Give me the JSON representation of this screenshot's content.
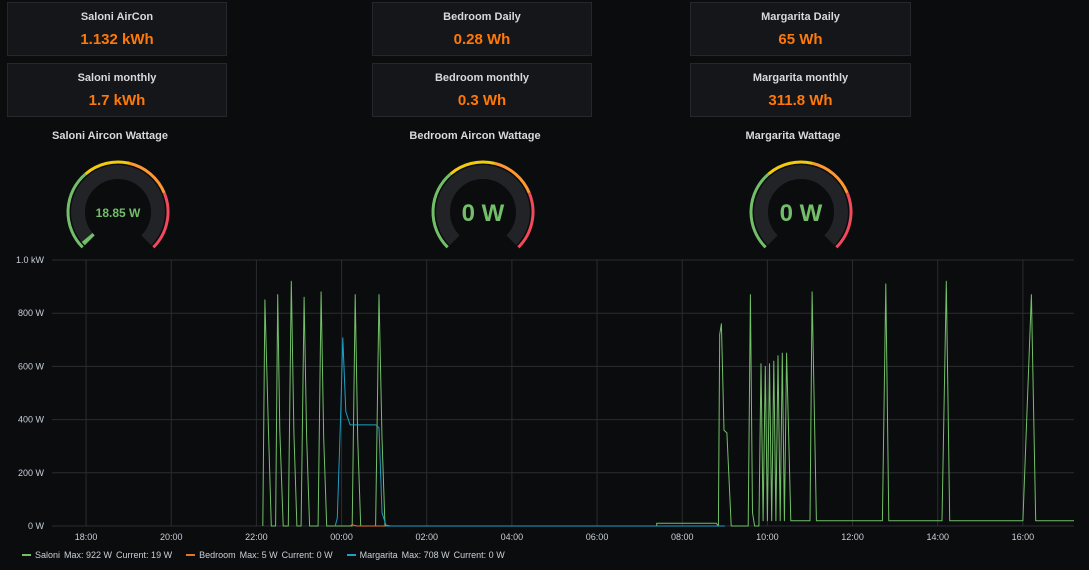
{
  "stats": [
    {
      "title": "Saloni AirCon",
      "value": "1.132 kWh"
    },
    {
      "title": "Bedroom Daily",
      "value": "0.28 Wh"
    },
    {
      "title": "Margarita Daily",
      "value": "65 Wh"
    },
    {
      "title": "Saloni monthly",
      "value": "1.7 kWh"
    },
    {
      "title": "Bedroom monthly",
      "value": "0.3 Wh"
    },
    {
      "title": "Margarita monthly",
      "value": "311.8 Wh"
    }
  ],
  "gauges": [
    {
      "title": "Saloni Aircon Wattage",
      "value": "18.85 W",
      "level": 0.019
    },
    {
      "title": "Bedroom Aircon Wattage",
      "value": "0 W",
      "level": 0
    },
    {
      "title": "Margarita Wattage",
      "value": "0 W",
      "level": 0
    }
  ],
  "colors": {
    "stat_value": "#ff780a",
    "gauge_value": "#73bf69",
    "saloni": "#73bf69",
    "bedroom": "#e0752d",
    "margarita": "#1f9ec9"
  },
  "chart_data": {
    "type": "line",
    "x_ticks": [
      "18:00",
      "20:00",
      "22:00",
      "00:00",
      "02:00",
      "04:00",
      "06:00",
      "08:00",
      "10:00",
      "12:00",
      "14:00",
      "16:00"
    ],
    "y_ticks": [
      "0 W",
      "200 W",
      "400 W",
      "600 W",
      "800 W",
      "1.0 kW"
    ],
    "ylim": [
      0,
      1000
    ],
    "xlim_hours": [
      17.2,
      41.2
    ],
    "grid": true,
    "series": [
      {
        "name": "Saloni",
        "color": "#73bf69",
        "points": [
          [
            22.15,
            0
          ],
          [
            22.2,
            850
          ],
          [
            22.28,
            380
          ],
          [
            22.35,
            0
          ],
          [
            22.45,
            0
          ],
          [
            22.5,
            870
          ],
          [
            22.55,
            360
          ],
          [
            22.63,
            0
          ],
          [
            22.75,
            0
          ],
          [
            22.82,
            920
          ],
          [
            22.88,
            350
          ],
          [
            22.95,
            0
          ],
          [
            23.05,
            0
          ],
          [
            23.12,
            860
          ],
          [
            23.18,
            340
          ],
          [
            23.25,
            0
          ],
          [
            23.45,
            0
          ],
          [
            23.52,
            880
          ],
          [
            23.58,
            330
          ],
          [
            23.65,
            0
          ],
          [
            24.25,
            0
          ],
          [
            24.32,
            870
          ],
          [
            24.38,
            330
          ],
          [
            24.45,
            0
          ],
          [
            24.8,
            0
          ],
          [
            24.88,
            870
          ],
          [
            24.95,
            330
          ],
          [
            25.02,
            0
          ],
          [
            25.2,
            0
          ],
          [
            31.3,
            0
          ],
          [
            31.4,
            0
          ],
          [
            31.4,
            10
          ],
          [
            32.8,
            10
          ],
          [
            32.85,
            0
          ],
          [
            32.88,
            720
          ],
          [
            32.92,
            760
          ],
          [
            32.98,
            360
          ],
          [
            33.05,
            350
          ],
          [
            33.15,
            0
          ],
          [
            33.55,
            0
          ],
          [
            33.6,
            870
          ],
          [
            33.65,
            50
          ],
          [
            33.7,
            0
          ],
          [
            33.8,
            0
          ],
          [
            33.85,
            610
          ],
          [
            33.9,
            20
          ],
          [
            33.95,
            600
          ],
          [
            34.0,
            20
          ],
          [
            34.05,
            610
          ],
          [
            34.1,
            20
          ],
          [
            34.15,
            620
          ],
          [
            34.2,
            20
          ],
          [
            34.25,
            640
          ],
          [
            34.3,
            20
          ],
          [
            34.35,
            650
          ],
          [
            34.4,
            20
          ],
          [
            34.45,
            650
          ],
          [
            34.55,
            20
          ],
          [
            35.0,
            20
          ],
          [
            35.05,
            880
          ],
          [
            35.15,
            20
          ],
          [
            36.7,
            20
          ],
          [
            36.78,
            910
          ],
          [
            36.85,
            20
          ],
          [
            38.1,
            20
          ],
          [
            38.2,
            920
          ],
          [
            38.28,
            20
          ],
          [
            40.0,
            20
          ],
          [
            40.2,
            870
          ],
          [
            40.3,
            20
          ],
          [
            41.2,
            20
          ]
        ]
      },
      {
        "name": "Bedroom",
        "color": "#e0752d",
        "points": [
          [
            24.2,
            0
          ],
          [
            24.25,
            5
          ],
          [
            24.35,
            0
          ],
          [
            25.0,
            0
          ],
          [
            25.05,
            3
          ],
          [
            25.15,
            0
          ]
        ]
      },
      {
        "name": "Margarita",
        "color": "#1f9ec9",
        "points": [
          [
            23.85,
            0
          ],
          [
            23.9,
            30
          ],
          [
            23.98,
            420
          ],
          [
            24.03,
            708
          ],
          [
            24.1,
            430
          ],
          [
            24.2,
            380
          ],
          [
            24.8,
            380
          ],
          [
            24.88,
            370
          ],
          [
            24.95,
            50
          ],
          [
            25.05,
            0
          ],
          [
            33.0,
            0
          ]
        ]
      }
    ],
    "legend": [
      {
        "name": "Saloni",
        "max": "Max: 922 W",
        "current": "Current: 19 W"
      },
      {
        "name": "Bedroom",
        "max": "Max: 5 W",
        "current": "Current: 0 W"
      },
      {
        "name": "Margarita",
        "max": "Max: 708 W",
        "current": "Current: 0 W"
      }
    ]
  }
}
